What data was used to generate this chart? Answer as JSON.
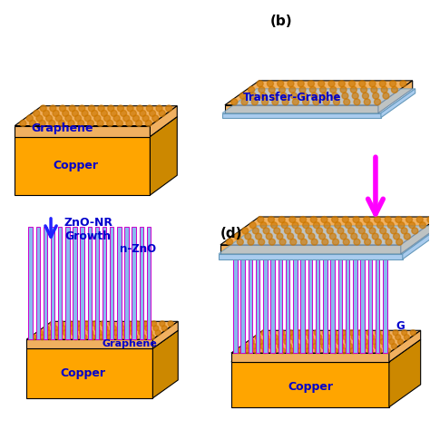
{
  "bg_color": "#ffffff",
  "copper_color": "#FFA500",
  "copper_side_color": "#CC8800",
  "graphene_top_color": "#F0B060",
  "graphene_dot_color": "#CC7700",
  "zno_rod_color": "#88BBEE",
  "zno_outline_color": "#CC00CC",
  "transfer_blue_color": "#AACCEE",
  "transfer_blue_edge": "#6699BB",
  "text_color": "#0000CC",
  "arrow_blue": "#2222FF",
  "arrow_magenta": "#FF00FF",
  "label_b": "(b)",
  "label_d": "(d)",
  "label_graphene_a": "Graphene",
  "label_copper_a": "Copper",
  "label_transfer": "Transfer-Graphe",
  "label_growth": "ZnO-NR\nGrowth",
  "label_nzno": "n-ZnO",
  "label_graphene_c": "Graphene",
  "label_copper_c": "Copper",
  "label_copper_d": "Copper",
  "label_g_d": "G"
}
